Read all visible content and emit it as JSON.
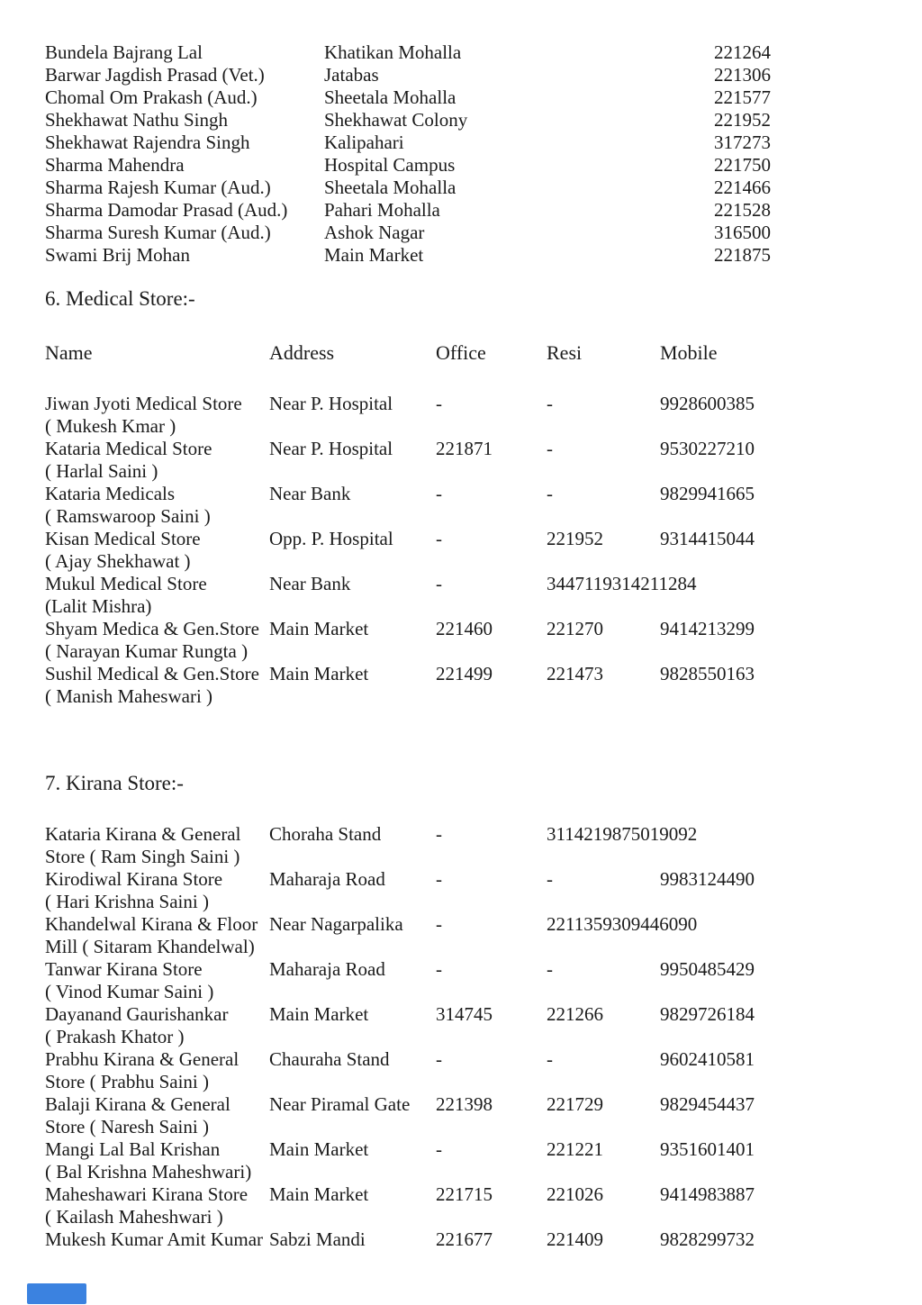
{
  "page": {
    "background": "#ffffff",
    "text_color": "#1b1b1b",
    "accent_blue": "#3b82e0"
  },
  "top_list": {
    "rows": [
      {
        "name": "Bundela Bajrang Lal",
        "address": "Khatikan Mohalla",
        "phone": "221264"
      },
      {
        "name": "Barwar Jagdish Prasad (Vet.)",
        "address": "Jatabas",
        "phone": "221306"
      },
      {
        "name": "Chomal Om Prakash (Aud.)",
        "address": "Sheetala Mohalla",
        "phone": "221577"
      },
      {
        "name": "Shekhawat Nathu Singh",
        "address": "Shekhawat Colony",
        "phone": "221952"
      },
      {
        "name": "Shekhawat Rajendra Singh",
        "address": "Kalipahari",
        "phone": "317273"
      },
      {
        "name": "Sharma Mahendra",
        "address": "Hospital Campus",
        "phone": "221750"
      },
      {
        "name": "Sharma Rajesh Kumar (Aud.)",
        "address": "Sheetala Mohalla",
        "phone": "221466"
      },
      {
        "name": "Sharma Damodar Prasad (Aud.)",
        "address": "Pahari Mohalla",
        "phone": "221528"
      },
      {
        "name": "Sharma Suresh Kumar (Aud.)",
        "address": "Ashok Nagar",
        "phone": "316500"
      },
      {
        "name": "Swami Brij Mohan",
        "address": "Main Market",
        "phone": "221875"
      }
    ]
  },
  "medical_section": {
    "heading": "6. Medical Store:-",
    "columns": [
      "Name",
      "Address",
      "Office",
      "Resi",
      "Mobile"
    ],
    "rows": [
      {
        "name_line1": "Jiwan Jyoti Medical Store",
        "name_line2": "( Mukesh Kmar )",
        "address": "Near P. Hospital",
        "office": "-",
        "resi": "-",
        "mobile": "9928600385"
      },
      {
        "name_line1": "Kataria Medical Store",
        "name_line2": "( Harlal Saini )",
        "address": "Near P. Hospital",
        "office": "221871",
        "resi": "-",
        "mobile": "9530227210"
      },
      {
        "name_line1": "Kataria Medicals",
        "name_line2": "( Ramswaroop Saini )",
        "address": "Near Bank",
        "office": "-",
        "resi": "-",
        "mobile": "9829941665"
      },
      {
        "name_line1": "Kisan Medical Store",
        "name_line2": "( Ajay Shekhawat )",
        "address": "Opp. P. Hospital",
        "office": "-",
        "resi": "221952",
        "mobile": "9314415044"
      },
      {
        "name_line1": "Mukul Medical Store",
        "name_line2": "(Lalit Mishra)",
        "address": "Near Bank",
        "office": "-",
        "resi": "3447119314211284",
        "mobile": ""
      },
      {
        "name_line1": "Shyam Medica & Gen.Store",
        "name_line2": "( Narayan Kumar Rungta )",
        "address": "Main Market",
        "office": "221460",
        "resi": "221270",
        "mobile": "9414213299"
      },
      {
        "name_line1": "Sushil Medical & Gen.Store",
        "name_line2": "( Manish Maheswari )",
        "address": "Main Market",
        "office": "221499",
        "resi": "221473",
        "mobile": "9828550163"
      }
    ]
  },
  "kirana_section": {
    "heading": "7. Kirana Store:-",
    "rows": [
      {
        "name_line1": "Kataria Kirana & General",
        "name_line2": "Store ( Ram Singh Saini )",
        "address": "Choraha Stand",
        "office": "-",
        "resi": "3114219875019092",
        "mobile": ""
      },
      {
        "name_line1": "Kirodiwal Kirana Store",
        "name_line2": "( Hari Krishna Saini )",
        "address": "Maharaja Road",
        "office": "-",
        "resi": "-",
        "mobile": "9983124490"
      },
      {
        "name_line1": "Khandelwal Kirana & Floor",
        "name_line2": "Mill ( Sitaram Khandelwal)",
        "address": "Near Nagarpalika",
        "office": "-",
        "resi": "2211359309446090",
        "mobile": ""
      },
      {
        "name_line1": "Tanwar Kirana Store",
        "name_line2": "( Vinod Kumar Saini )",
        "address": "Maharaja Road",
        "office": "-",
        "resi": "-",
        "mobile": "9950485429"
      },
      {
        "name_line1": "Dayanand Gaurishankar",
        "name_line2": "( Prakash Khator )",
        "address": "Main Market",
        "office": "314745",
        "resi": "221266",
        "mobile": "9829726184"
      },
      {
        "name_line1": "Prabhu Kirana & General",
        "name_line2": "Store ( Prabhu Saini )",
        "address": "Chauraha Stand",
        "office": "-",
        "resi": "-",
        "mobile": "9602410581"
      },
      {
        "name_line1": "Balaji Kirana & General",
        "name_line2": "Store ( Naresh Saini )",
        "address": "Near Piramal Gate",
        "office": "221398",
        "resi": "221729",
        "mobile": "9829454437"
      },
      {
        "name_line1": "Mangi Lal Bal Krishan",
        "name_line2": "( Bal Krishna Maheshwari)",
        "address": "Main Market",
        "office": "-",
        "resi": "221221",
        "mobile": "9351601401"
      },
      {
        "name_line1": "Maheshawari Kirana Store",
        "name_line2": "( Kailash Maheshwari )",
        "address": "Main Market",
        "office": "221715",
        "resi": "221026",
        "mobile": "9414983887"
      },
      {
        "name_line1": "Mukesh Kumar Amit Kumar",
        "name_line2": "",
        "address": "Sabzi Mandi",
        "office": "221677",
        "resi": "221409",
        "mobile": "9828299732"
      }
    ]
  }
}
